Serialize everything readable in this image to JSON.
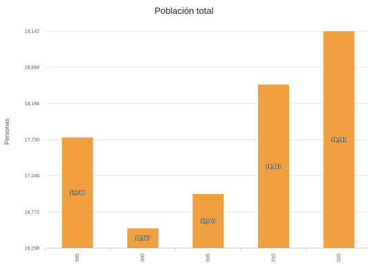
{
  "chart_data": {
    "type": "bar",
    "title": "Población total",
    "xlabel": "",
    "ylabel": "Personas",
    "categories": [
      "995",
      "000",
      "005",
      "010",
      "020"
    ],
    "values": [
      17748,
      16557,
      17007,
      18441,
      19141
    ],
    "data_labels": [
      "17,748",
      "16,557",
      "17,007",
      "18,441",
      "19,141"
    ],
    "ylim": [
      16298,
      19142
    ],
    "yticks": [
      16298,
      16772,
      17246,
      17720,
      18194,
      18668,
      19142
    ],
    "ytick_labels": [
      "16,298",
      "16,772",
      "17,246",
      "17,720",
      "18,194",
      "18,668",
      "19,142"
    ],
    "bar_color": "#f0a040",
    "grid": true,
    "legend": "none"
  }
}
